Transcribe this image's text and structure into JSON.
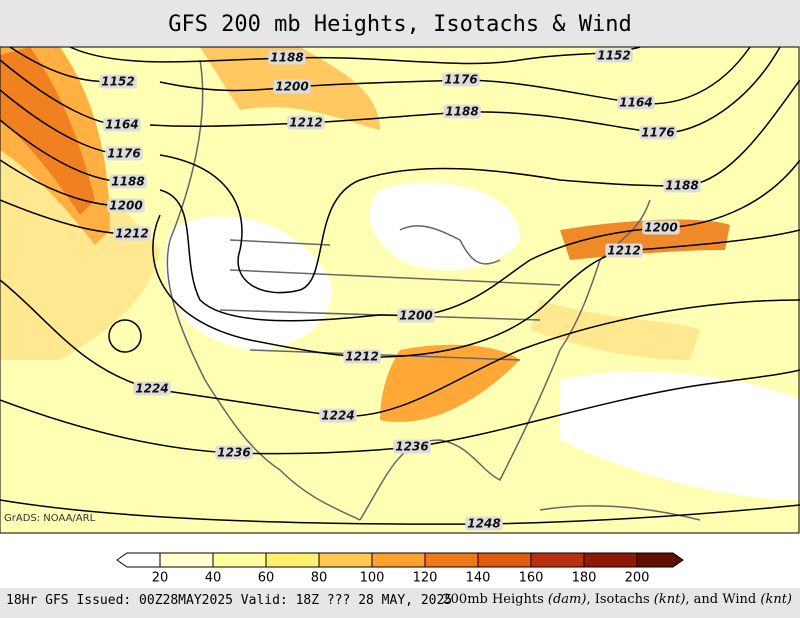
{
  "title": "GFS 200 mb Heights, Isotachs & Wind",
  "contour_labels": [
    "1188",
    "1152",
    "1152",
    "1200",
    "1176",
    "1164",
    "1188",
    "1212",
    "1164",
    "1176",
    "1176",
    "1188",
    "1188",
    "1200",
    "1200",
    "1212",
    "1212",
    "1200",
    "1212",
    "1224",
    "1224",
    "1236",
    "1236",
    "1248"
  ],
  "credit": "GrADS: NOAA/ARL",
  "colorbar": {
    "labels": [
      "20",
      "40",
      "60",
      "80",
      "100",
      "120",
      "140",
      "160",
      "180",
      "200"
    ]
  },
  "footer": {
    "left": "18Hr GFS Issued: 00Z28MAY2025 Valid: 18Z ??? 28 MAY, 2025",
    "right": [
      "200mb Heights ",
      "(dam)",
      ", Isotachs ",
      "(knt)",
      ", and Wind ",
      "(knt)"
    ]
  }
}
